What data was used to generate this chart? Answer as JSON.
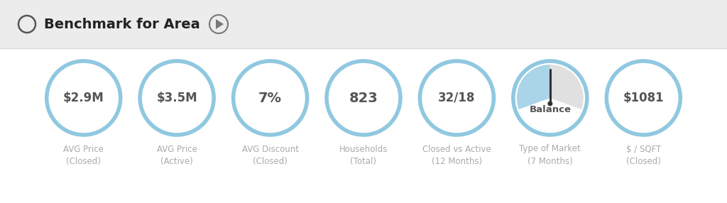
{
  "background_color": "#f2f2f2",
  "panel_color": "#ffffff",
  "header_text": "Benchmark for Area",
  "header_bg": "#ececec",
  "header_line_color": "#d8d8d8",
  "circle_edge_color": "#90c8e0",
  "circle_bg": "#ffffff",
  "circle_linewidth": 4.0,
  "value_color": "#555555",
  "label_color": "#aaaaaa",
  "gauge_blue": "#aad4e8",
  "gauge_gray": "#e0e0e0",
  "needle_color": "#333333",
  "metrics": [
    {
      "value": "$2.9M",
      "line1": "AVG Price",
      "line2": "(Closed)",
      "type": "plain"
    },
    {
      "value": "$3.5M",
      "line1": "AVG Price",
      "line2": "(Active)",
      "type": "plain"
    },
    {
      "value": "7%",
      "line1": "AVG Discount",
      "line2": "(Closed)",
      "type": "plain"
    },
    {
      "value": "823",
      "line1": "Households",
      "line2": "(Total)",
      "type": "plain"
    },
    {
      "value": "32/18",
      "line1": "Closed vs Active",
      "line2": "(12 Months)",
      "type": "plain"
    },
    {
      "value": "Balance",
      "line1": "Type of Market",
      "line2": "(7 Months)",
      "type": "gauge"
    },
    {
      "value": "$1081",
      "line1": "$ / SQFT",
      "line2": "(Closed)",
      "type": "plain"
    }
  ],
  "figsize": [
    10.24,
    2.86
  ],
  "dpi": 100
}
